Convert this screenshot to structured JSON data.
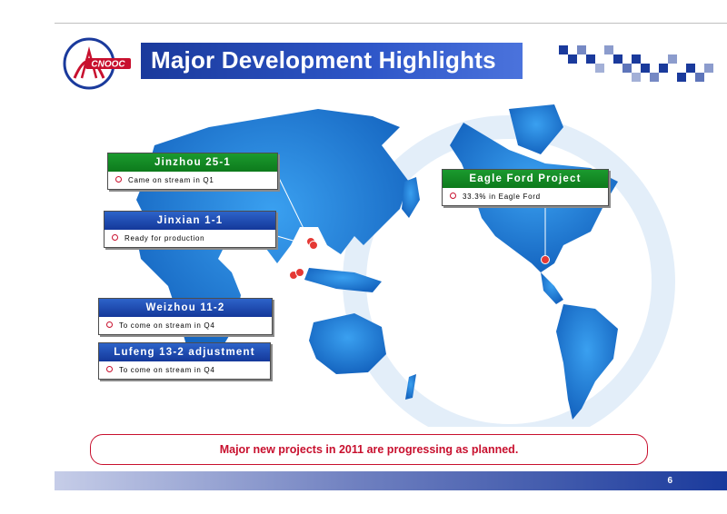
{
  "title": "Major Development Highlights",
  "logo": {
    "text": "CNOOC"
  },
  "callouts": [
    {
      "title": "Jinzhou 25-1",
      "text": "Came on stream in Q1",
      "color": "#1b9a2e"
    },
    {
      "title": "Jinxian 1-1",
      "text": "Ready for production",
      "color": "#2d63c9"
    },
    {
      "title": "Weizhou 11-2",
      "text": "To come on stream in Q4",
      "color": "#2d63c9"
    },
    {
      "title": "Lufeng 13-2 adjustment",
      "text": "To come on stream in Q4",
      "color": "#2d63c9"
    },
    {
      "title": "Eagle Ford Project",
      "text": "33.3% in Eagle Ford",
      "color": "#1b9a2e"
    }
  ],
  "banner": "Major new projects in 2011 are progressing as planned.",
  "page_number": "6",
  "colors": {
    "accent_red": "#c8102e",
    "map_blue": "#1e88e5",
    "title_blue": "#1a3a9c"
  }
}
